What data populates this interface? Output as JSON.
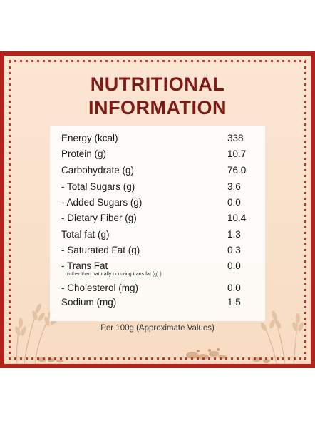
{
  "title_line1": "NUTRITIONAL",
  "title_line2": "INFORMATION",
  "rows": [
    {
      "label": "Energy (kcal)",
      "value": "338"
    },
    {
      "label": "Protein (g)",
      "value": "10.7"
    },
    {
      "label": "Carbohydrate (g)",
      "value": "76.0"
    },
    {
      "label": "- Total Sugars (g)",
      "value": "3.6"
    },
    {
      "label": "- Added Sugars (g)",
      "value": "0.0"
    },
    {
      "label": "- Dietary Fiber (g)",
      "value": "10.4"
    },
    {
      "label": "Total fat (g)",
      "value": "1.3"
    },
    {
      "label": "- Saturated Fat (g)",
      "value": "0.3"
    },
    {
      "label": "- Trans Fat",
      "value": "0.0",
      "note": "(other than naturally occuring trans fat (g) )"
    },
    {
      "label": "- Cholesterol (mg)",
      "value": "0.0"
    },
    {
      "label": "Sodium (mg)",
      "value": "1.5"
    }
  ],
  "footer": "Per 100g (Approximate Values)",
  "colors": {
    "border": "#b3231e",
    "title": "#7f1a16",
    "background": "#f9e0c9"
  }
}
